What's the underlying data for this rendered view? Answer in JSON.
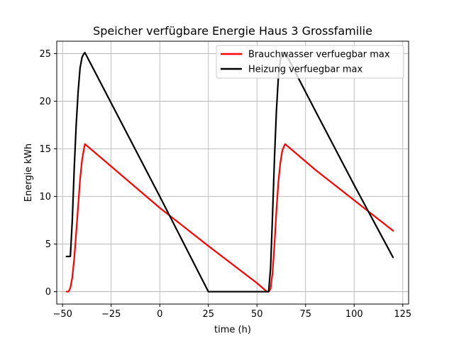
{
  "chart_data": {
    "type": "line",
    "title": "Speicher verfügbare Energie Haus 3 Grossfamilie",
    "xlabel": "time (h)",
    "ylabel": "Energie kWh",
    "xlim": [
      -53,
      128
    ],
    "ylim": [
      -1.3,
      26.3
    ],
    "xticks": [
      -50,
      -25,
      0,
      25,
      50,
      75,
      100,
      125
    ],
    "yticks": [
      0,
      5,
      10,
      15,
      20,
      25
    ],
    "xtick_labels": [
      "−50",
      "−25",
      "0",
      "25",
      "50",
      "75",
      "100",
      "125"
    ],
    "ytick_labels": [
      "0",
      "5",
      "10",
      "15",
      "20",
      "25"
    ],
    "grid": true,
    "legend_position": "top-right",
    "series": [
      {
        "name": "Brauchwasser verfuegbar max",
        "color": "#ff0000",
        "x": [
          -48,
          -47,
          -46,
          -45,
          -44,
          -43,
          -42,
          -41,
          -40,
          -39,
          -38.5,
          0,
          25,
          50,
          54,
          55,
          56,
          57,
          58,
          59,
          60,
          61,
          62,
          63,
          64,
          64.5,
          80,
          100,
          120
        ],
        "y": [
          0,
          0,
          0.4,
          1.5,
          3.5,
          6.2,
          9.0,
          11.8,
          13.8,
          15.0,
          15.5,
          8.8,
          4.8,
          0.9,
          0.2,
          0,
          0,
          0.3,
          2.0,
          5.0,
          8.5,
          11.5,
          13.5,
          14.8,
          15.3,
          15.5,
          12.8,
          9.6,
          6.4
        ]
      },
      {
        "name": "Heizung verfuegbar max",
        "color": "#000000",
        "x": [
          -48,
          -47,
          -46,
          -45,
          -44,
          -43,
          -42,
          -41,
          -40,
          -39,
          -38.5,
          0,
          25,
          50,
          56,
          57,
          58,
          59,
          60,
          61,
          62,
          63,
          64,
          64.5,
          80,
          100,
          120
        ],
        "y": [
          3.7,
          3.7,
          3.7,
          7.5,
          13.0,
          17.5,
          21.0,
          23.5,
          24.6,
          25.0,
          25.1,
          10.0,
          0,
          0,
          0,
          2.5,
          8.0,
          14.0,
          19.0,
          22.5,
          24.3,
          25.0,
          25.1,
          25.1,
          19.0,
          11.2,
          3.6
        ]
      }
    ]
  }
}
